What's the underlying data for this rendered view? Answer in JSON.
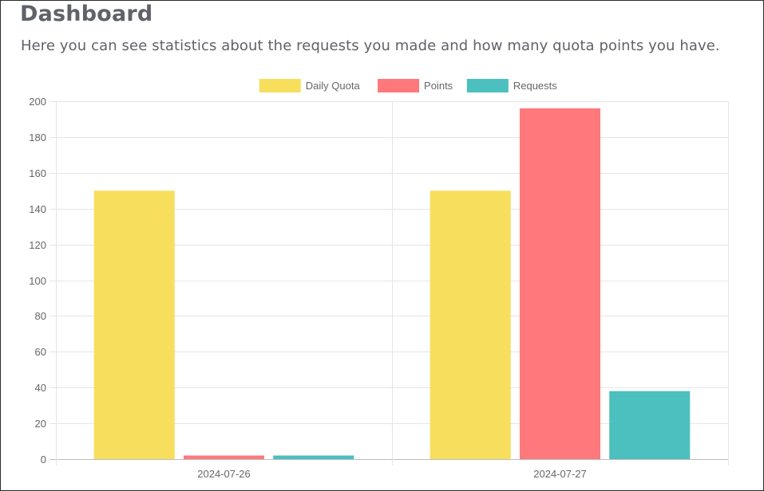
{
  "page": {
    "title": "Dashboard",
    "subtitle": "Here you can see statistics about the requests you made and how many quota points you have."
  },
  "colors": {
    "daily_quota": "#f8de5d",
    "points": "#ff787c",
    "requests": "#4cbfbf",
    "grid": "#e5e5e5",
    "axis_text": "#666666"
  },
  "chart_data": {
    "type": "bar",
    "categories": [
      "2024-07-26",
      "2024-07-27"
    ],
    "series": [
      {
        "name": "Daily Quota",
        "values": [
          150,
          150
        ],
        "color": "#f8de5d"
      },
      {
        "name": "Points",
        "values": [
          2,
          196
        ],
        "color": "#ff787c"
      },
      {
        "name": "Requests",
        "values": [
          2,
          38
        ],
        "color": "#4cbfbf"
      }
    ],
    "ylim": [
      0,
      200
    ],
    "yticks": [
      0,
      20,
      40,
      60,
      80,
      100,
      120,
      140,
      160,
      180,
      200
    ],
    "grid": true,
    "legend_position": "top-center",
    "title": "",
    "xlabel": "",
    "ylabel": ""
  }
}
